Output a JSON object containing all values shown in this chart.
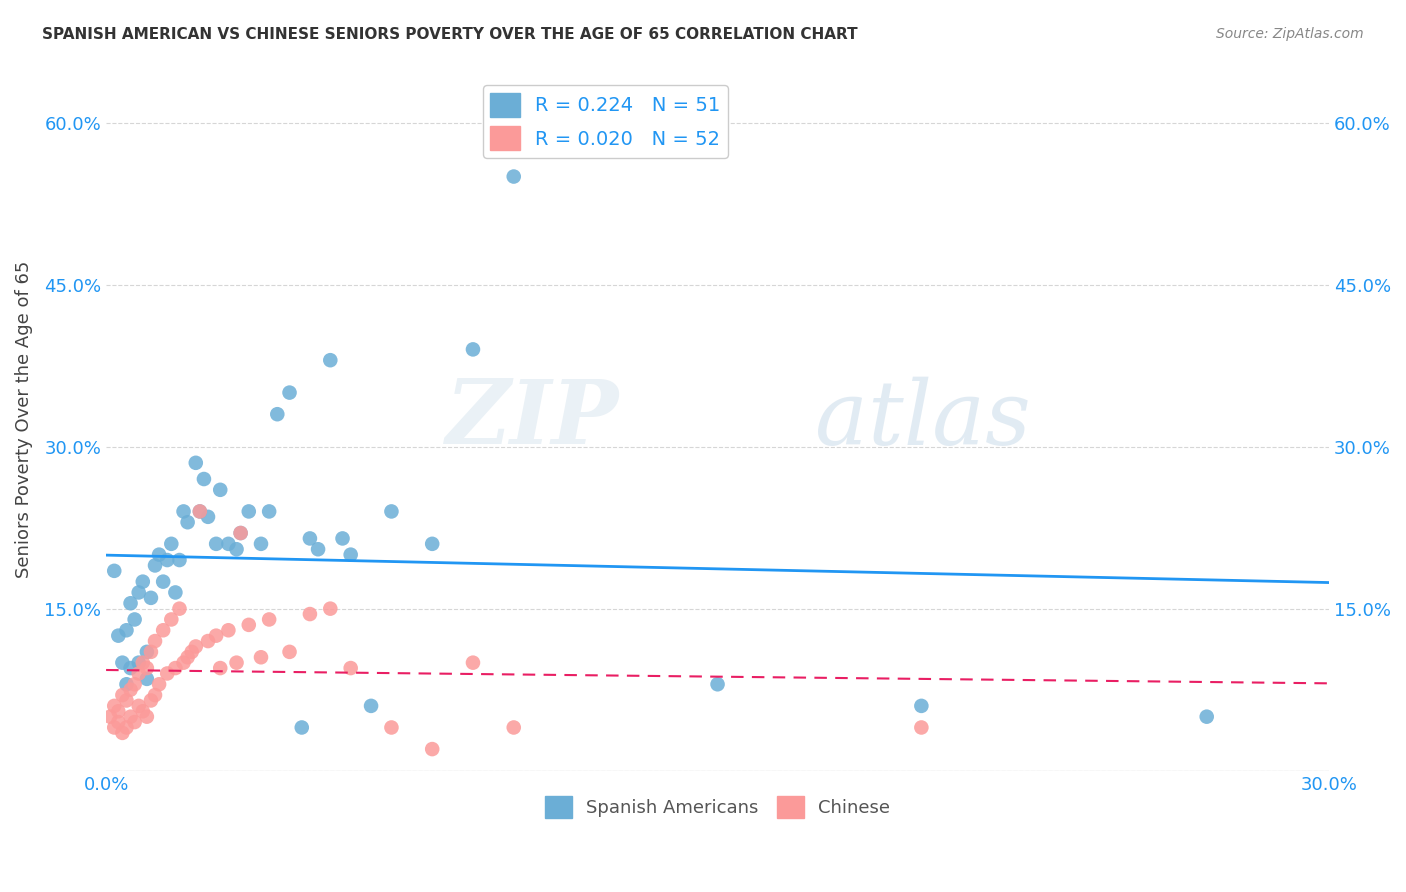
{
  "title": "SPANISH AMERICAN VS CHINESE SENIORS POVERTY OVER THE AGE OF 65 CORRELATION CHART",
  "source": "Source: ZipAtlas.com",
  "ylabel": "Seniors Poverty Over the Age of 65",
  "xlim": [
    0.0,
    0.3
  ],
  "ylim": [
    0.0,
    0.65
  ],
  "xticks": [
    0.0,
    0.05,
    0.1,
    0.15,
    0.2,
    0.25,
    0.3
  ],
  "yticks": [
    0.0,
    0.15,
    0.3,
    0.45,
    0.6
  ],
  "left_ytick_labels": [
    "",
    "15.0%",
    "30.0%",
    "45.0%",
    "60.0%"
  ],
  "right_ytick_labels": [
    "",
    "15.0%",
    "30.0%",
    "45.0%",
    "60.0%"
  ],
  "xtick_labels": [
    "0.0%",
    "",
    "",
    "",
    "",
    "",
    "30.0%"
  ],
  "blue_color": "#6baed6",
  "pink_color": "#fb9a99",
  "blue_line_color": "#2196F3",
  "pink_line_color": "#e91e63",
  "R_blue": 0.224,
  "N_blue": 51,
  "R_pink": 0.02,
  "N_pink": 52,
  "watermark_zip": "ZIP",
  "watermark_atlas": "atlas",
  "legend_label_blue": "Spanish Americans",
  "legend_label_pink": "Chinese",
  "spanish_x": [
    0.002,
    0.003,
    0.004,
    0.005,
    0.005,
    0.006,
    0.006,
    0.007,
    0.008,
    0.008,
    0.009,
    0.01,
    0.01,
    0.011,
    0.012,
    0.013,
    0.014,
    0.015,
    0.016,
    0.017,
    0.018,
    0.019,
    0.02,
    0.022,
    0.023,
    0.024,
    0.025,
    0.027,
    0.028,
    0.03,
    0.032,
    0.033,
    0.035,
    0.038,
    0.04,
    0.042,
    0.045,
    0.048,
    0.05,
    0.052,
    0.055,
    0.058,
    0.06,
    0.065,
    0.07,
    0.08,
    0.09,
    0.1,
    0.15,
    0.2,
    0.27
  ],
  "spanish_y": [
    0.185,
    0.125,
    0.1,
    0.08,
    0.13,
    0.095,
    0.155,
    0.14,
    0.165,
    0.1,
    0.175,
    0.085,
    0.11,
    0.16,
    0.19,
    0.2,
    0.175,
    0.195,
    0.21,
    0.165,
    0.195,
    0.24,
    0.23,
    0.285,
    0.24,
    0.27,
    0.235,
    0.21,
    0.26,
    0.21,
    0.205,
    0.22,
    0.24,
    0.21,
    0.24,
    0.33,
    0.35,
    0.04,
    0.215,
    0.205,
    0.38,
    0.215,
    0.2,
    0.06,
    0.24,
    0.21,
    0.39,
    0.55,
    0.08,
    0.06,
    0.05
  ],
  "chinese_x": [
    0.001,
    0.002,
    0.002,
    0.003,
    0.003,
    0.004,
    0.004,
    0.005,
    0.005,
    0.006,
    0.006,
    0.007,
    0.007,
    0.008,
    0.008,
    0.009,
    0.009,
    0.01,
    0.01,
    0.011,
    0.011,
    0.012,
    0.012,
    0.013,
    0.014,
    0.015,
    0.016,
    0.017,
    0.018,
    0.019,
    0.02,
    0.021,
    0.022,
    0.023,
    0.025,
    0.027,
    0.028,
    0.03,
    0.032,
    0.033,
    0.035,
    0.038,
    0.04,
    0.045,
    0.05,
    0.055,
    0.06,
    0.07,
    0.08,
    0.09,
    0.1,
    0.2
  ],
  "chinese_y": [
    0.05,
    0.04,
    0.06,
    0.045,
    0.055,
    0.035,
    0.07,
    0.04,
    0.065,
    0.05,
    0.075,
    0.045,
    0.08,
    0.06,
    0.09,
    0.055,
    0.1,
    0.05,
    0.095,
    0.065,
    0.11,
    0.07,
    0.12,
    0.08,
    0.13,
    0.09,
    0.14,
    0.095,
    0.15,
    0.1,
    0.105,
    0.11,
    0.115,
    0.24,
    0.12,
    0.125,
    0.095,
    0.13,
    0.1,
    0.22,
    0.135,
    0.105,
    0.14,
    0.11,
    0.145,
    0.15,
    0.095,
    0.04,
    0.02,
    0.1,
    0.04,
    0.04
  ]
}
